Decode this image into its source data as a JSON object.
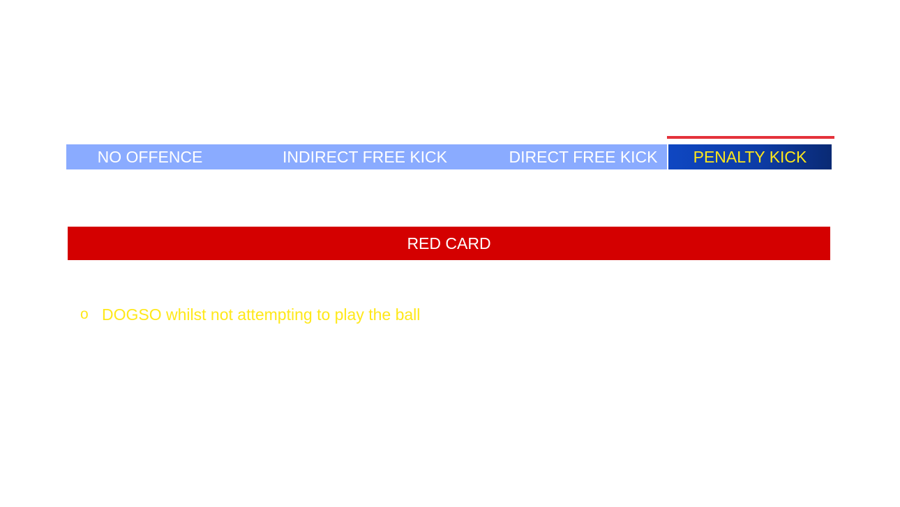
{
  "scale": {
    "no_offence": "NO OFFENCE",
    "indirect_free_kick": "INDIRECT FREE KICK",
    "direct_free_kick": "DIRECT FREE KICK",
    "penalty_kick": "PENALTY KICK"
  },
  "sanction": {
    "label": "RED CARD"
  },
  "criteria": [
    {
      "bullet": "o",
      "text": "DOGSO whilst not attempting to play the ball"
    }
  ],
  "colors": {
    "scale_background": "#8aabff",
    "penalty_background": "#0d3ca6",
    "penalty_marker": "#e4323b",
    "red_card": "#d40000",
    "highlight_text": "#ffe81a"
  }
}
